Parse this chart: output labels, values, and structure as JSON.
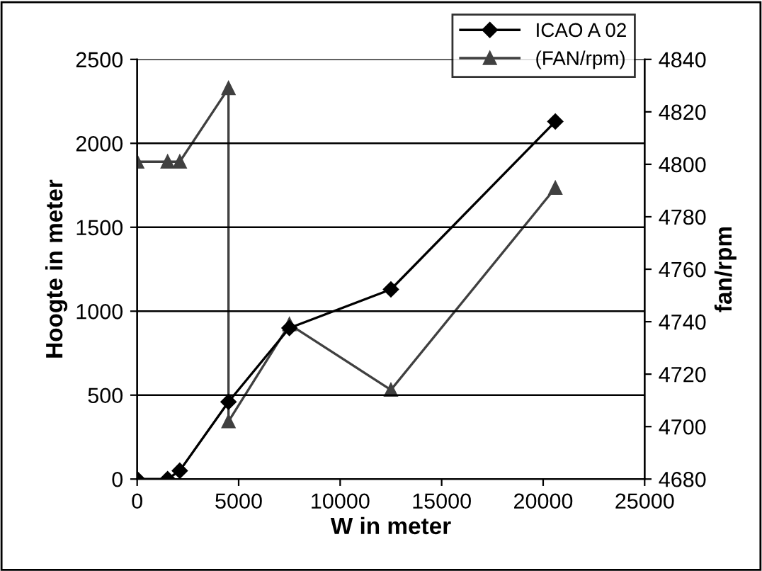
{
  "chart_data": {
    "type": "line",
    "xlabel": "W in meter",
    "ylabel": "Hoogte in meter",
    "y2label": "fan/rpm",
    "xlim": [
      0,
      25000
    ],
    "xticks": [
      0,
      5000,
      10000,
      15000,
      20000,
      25000
    ],
    "ylim": [
      0,
      2500
    ],
    "yticks": [
      0,
      500,
      1000,
      1500,
      2000,
      2500
    ],
    "y2lim": [
      4680,
      4840
    ],
    "y2ticks": [
      4680,
      4700,
      4720,
      4740,
      4760,
      4780,
      4800,
      4820,
      4840
    ],
    "grid": "y",
    "legend": "top right",
    "line_style": "solid",
    "series": [
      {
        "name": "ICAO A 02",
        "color": "#000000",
        "marker": "diamond",
        "x": [
          0,
          1500,
          2100,
          4500,
          7500,
          12500,
          20600
        ],
        "values": [
          0,
          0,
          50,
          460,
          900,
          1130,
          2130
        ]
      },
      {
        "name": "(FAN/rpm)",
        "color": "#404040",
        "marker": "triangle",
        "axis": "y2",
        "x": [
          0,
          1500,
          2100,
          4500,
          4500,
          7500,
          12500,
          20600
        ],
        "values": [
          4801,
          4801,
          4801,
          4829,
          4702,
          4739,
          4714,
          4791
        ]
      }
    ]
  }
}
